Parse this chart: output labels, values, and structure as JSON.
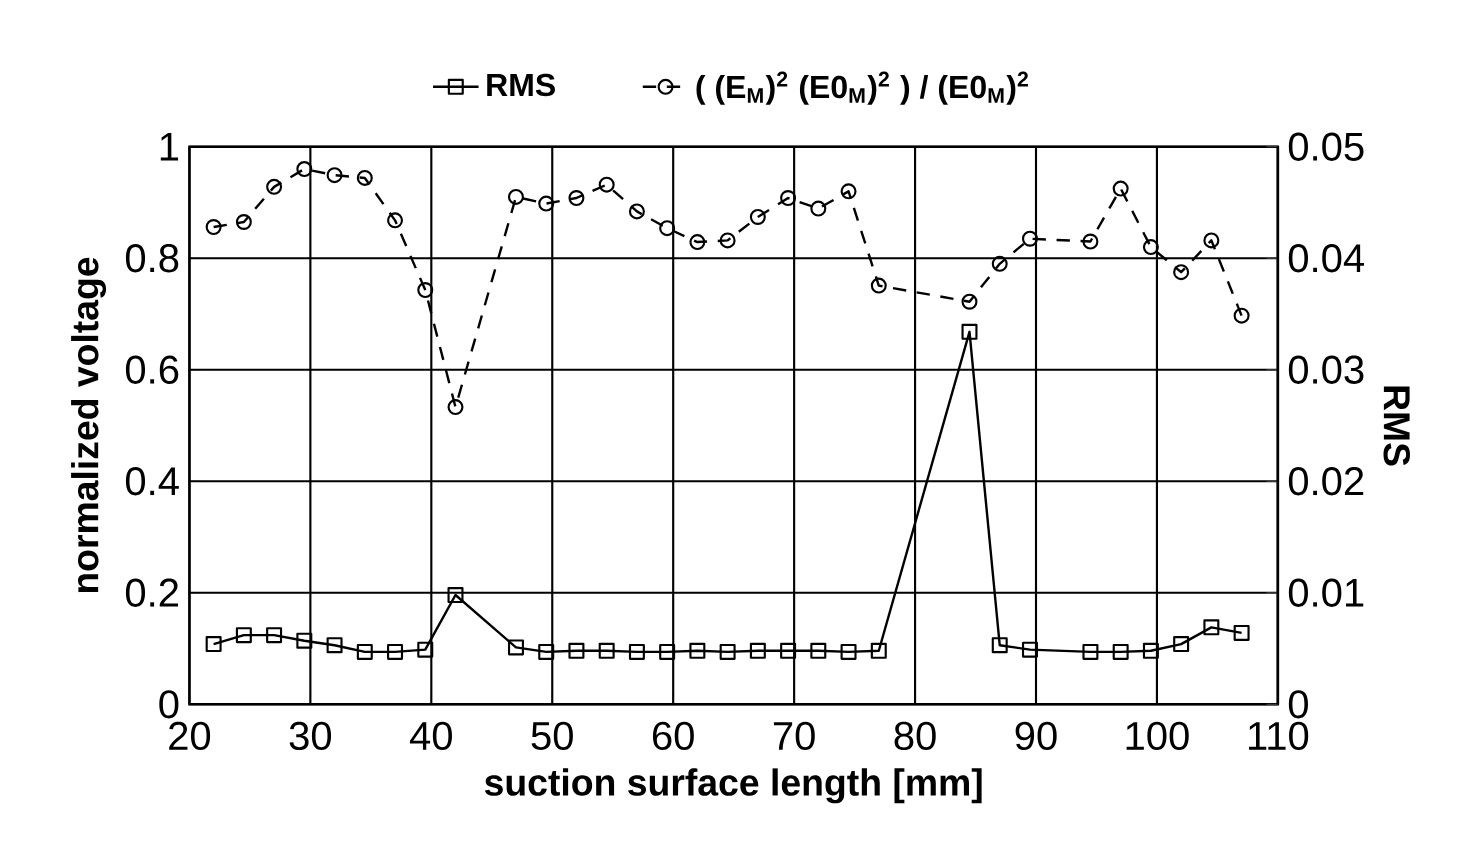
{
  "chart_data": {
    "type": "line",
    "x": [
      22,
      24.5,
      27,
      29.5,
      32,
      34.5,
      37,
      39.5,
      42,
      47,
      49.5,
      52,
      54.5,
      57,
      59.5,
      62,
      64.5,
      67,
      69.5,
      72,
      74.5,
      77,
      84.5,
      87,
      89.5,
      94.5,
      97,
      99.5,
      102,
      104.5,
      107
    ],
    "series": [
      {
        "name": "RMS",
        "color": "#000000",
        "axis": "y2",
        "marker": "square",
        "line_style": "solid",
        "values": [
          0.0054,
          0.0062,
          0.0062,
          0.0057,
          0.0053,
          0.0047,
          0.0047,
          0.0049,
          0.0098,
          0.0051,
          0.0047,
          0.0048,
          0.0048,
          0.0047,
          0.0047,
          0.0048,
          0.0047,
          0.0048,
          0.0048,
          0.0048,
          0.0047,
          0.0048,
          0.0334,
          0.0053,
          0.0049,
          0.0047,
          0.0047,
          0.0048,
          0.0054,
          0.0069,
          0.0064
        ]
      },
      {
        "name": "( (E$_{M}$)$^{2}$   (E0$_{M}$)$^{2}$ ) / (E0$_{M}$)$^{2}$",
        "color": "#000000",
        "axis": "y",
        "marker": "circle",
        "line_style": "dashed",
        "values": [
          0.856,
          0.865,
          0.928,
          0.96,
          0.949,
          0.944,
          0.868,
          0.743,
          0.533,
          0.91,
          0.898,
          0.908,
          0.932,
          0.884,
          0.854,
          0.829,
          0.832,
          0.874,
          0.908,
          0.889,
          0.92,
          0.751,
          0.722,
          0.79,
          0.835,
          0.83,
          0.925,
          0.82,
          0.775,
          0.832,
          0.697
        ]
      }
    ],
    "xlabel": "suction surface length [mm]",
    "ylabel": "normalized voltage",
    "y2label": "RMS",
    "xlim": [
      20,
      110
    ],
    "xticks": [
      20,
      30,
      40,
      50,
      60,
      70,
      80,
      90,
      100,
      110
    ],
    "ylim": [
      0,
      1
    ],
    "yticks": [
      0,
      0.2,
      0.4,
      0.6,
      0.8,
      1
    ],
    "y2lim": [
      0,
      0.05
    ],
    "y2ticks": [
      0,
      0.01,
      0.02,
      0.03,
      0.04,
      0.05
    ],
    "grid": true,
    "legend": "top"
  }
}
